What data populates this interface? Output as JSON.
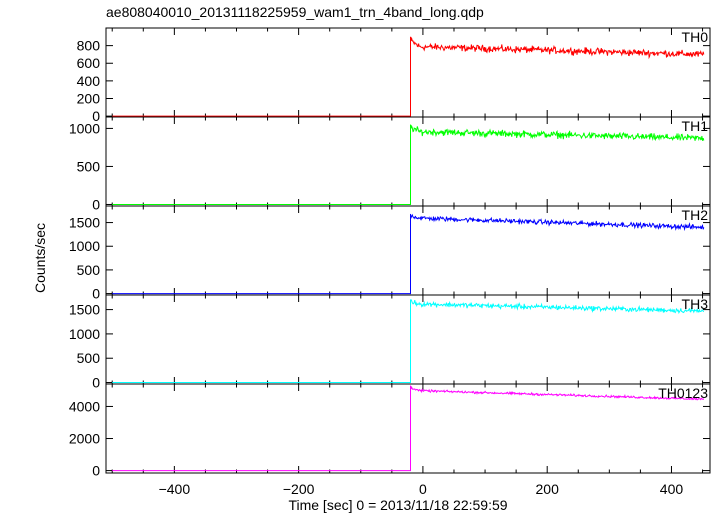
{
  "chart_data": {
    "type": "line",
    "title": "ae808040010_20131118225959_wam1_trn_4band_long.qdp",
    "xlabel": "Time [sec] 0 = 2013/11/18 22:59:59",
    "ylabel": "Counts/sec",
    "xlim": [
      -510,
      462
    ],
    "xticks": [
      -400,
      -200,
      0,
      200,
      400
    ],
    "grid": false,
    "legend": "none",
    "onset_time": -20,
    "x_end": 452,
    "panels": [
      {
        "name": "TH0",
        "color": "#ff0000",
        "ylim": [
          -10,
          1000
        ],
        "yticks": [
          0,
          200,
          400,
          600,
          800
        ],
        "baseline": 0,
        "peak": 900,
        "level_start": 790,
        "level_end": 700,
        "noise": 35
      },
      {
        "name": "TH1",
        "color": "#00ff00",
        "ylim": [
          -20,
          1150
        ],
        "yticks": [
          0,
          500,
          1000
        ],
        "baseline": 0,
        "peak": 1050,
        "level_start": 960,
        "level_end": 870,
        "noise": 40
      },
      {
        "name": "TH2",
        "color": "#0000ff",
        "ylim": [
          -30,
          1850
        ],
        "yticks": [
          0,
          500,
          1000,
          1500
        ],
        "baseline": 0,
        "peak": 1680,
        "level_start": 1600,
        "level_end": 1400,
        "noise": 45
      },
      {
        "name": "TH3",
        "color": "#00ffff",
        "ylim": [
          -30,
          1800
        ],
        "yticks": [
          0,
          500,
          1000,
          1500
        ],
        "baseline": 0,
        "peak": 1700,
        "level_start": 1620,
        "level_end": 1470,
        "noise": 45
      },
      {
        "name": "TH0123",
        "color": "#ff00ff",
        "ylim": [
          -150,
          5400
        ],
        "yticks": [
          0,
          2000,
          4000
        ],
        "baseline": 0,
        "peak": 5300,
        "level_start": 5000,
        "level_end": 4450,
        "noise": 60
      }
    ]
  }
}
